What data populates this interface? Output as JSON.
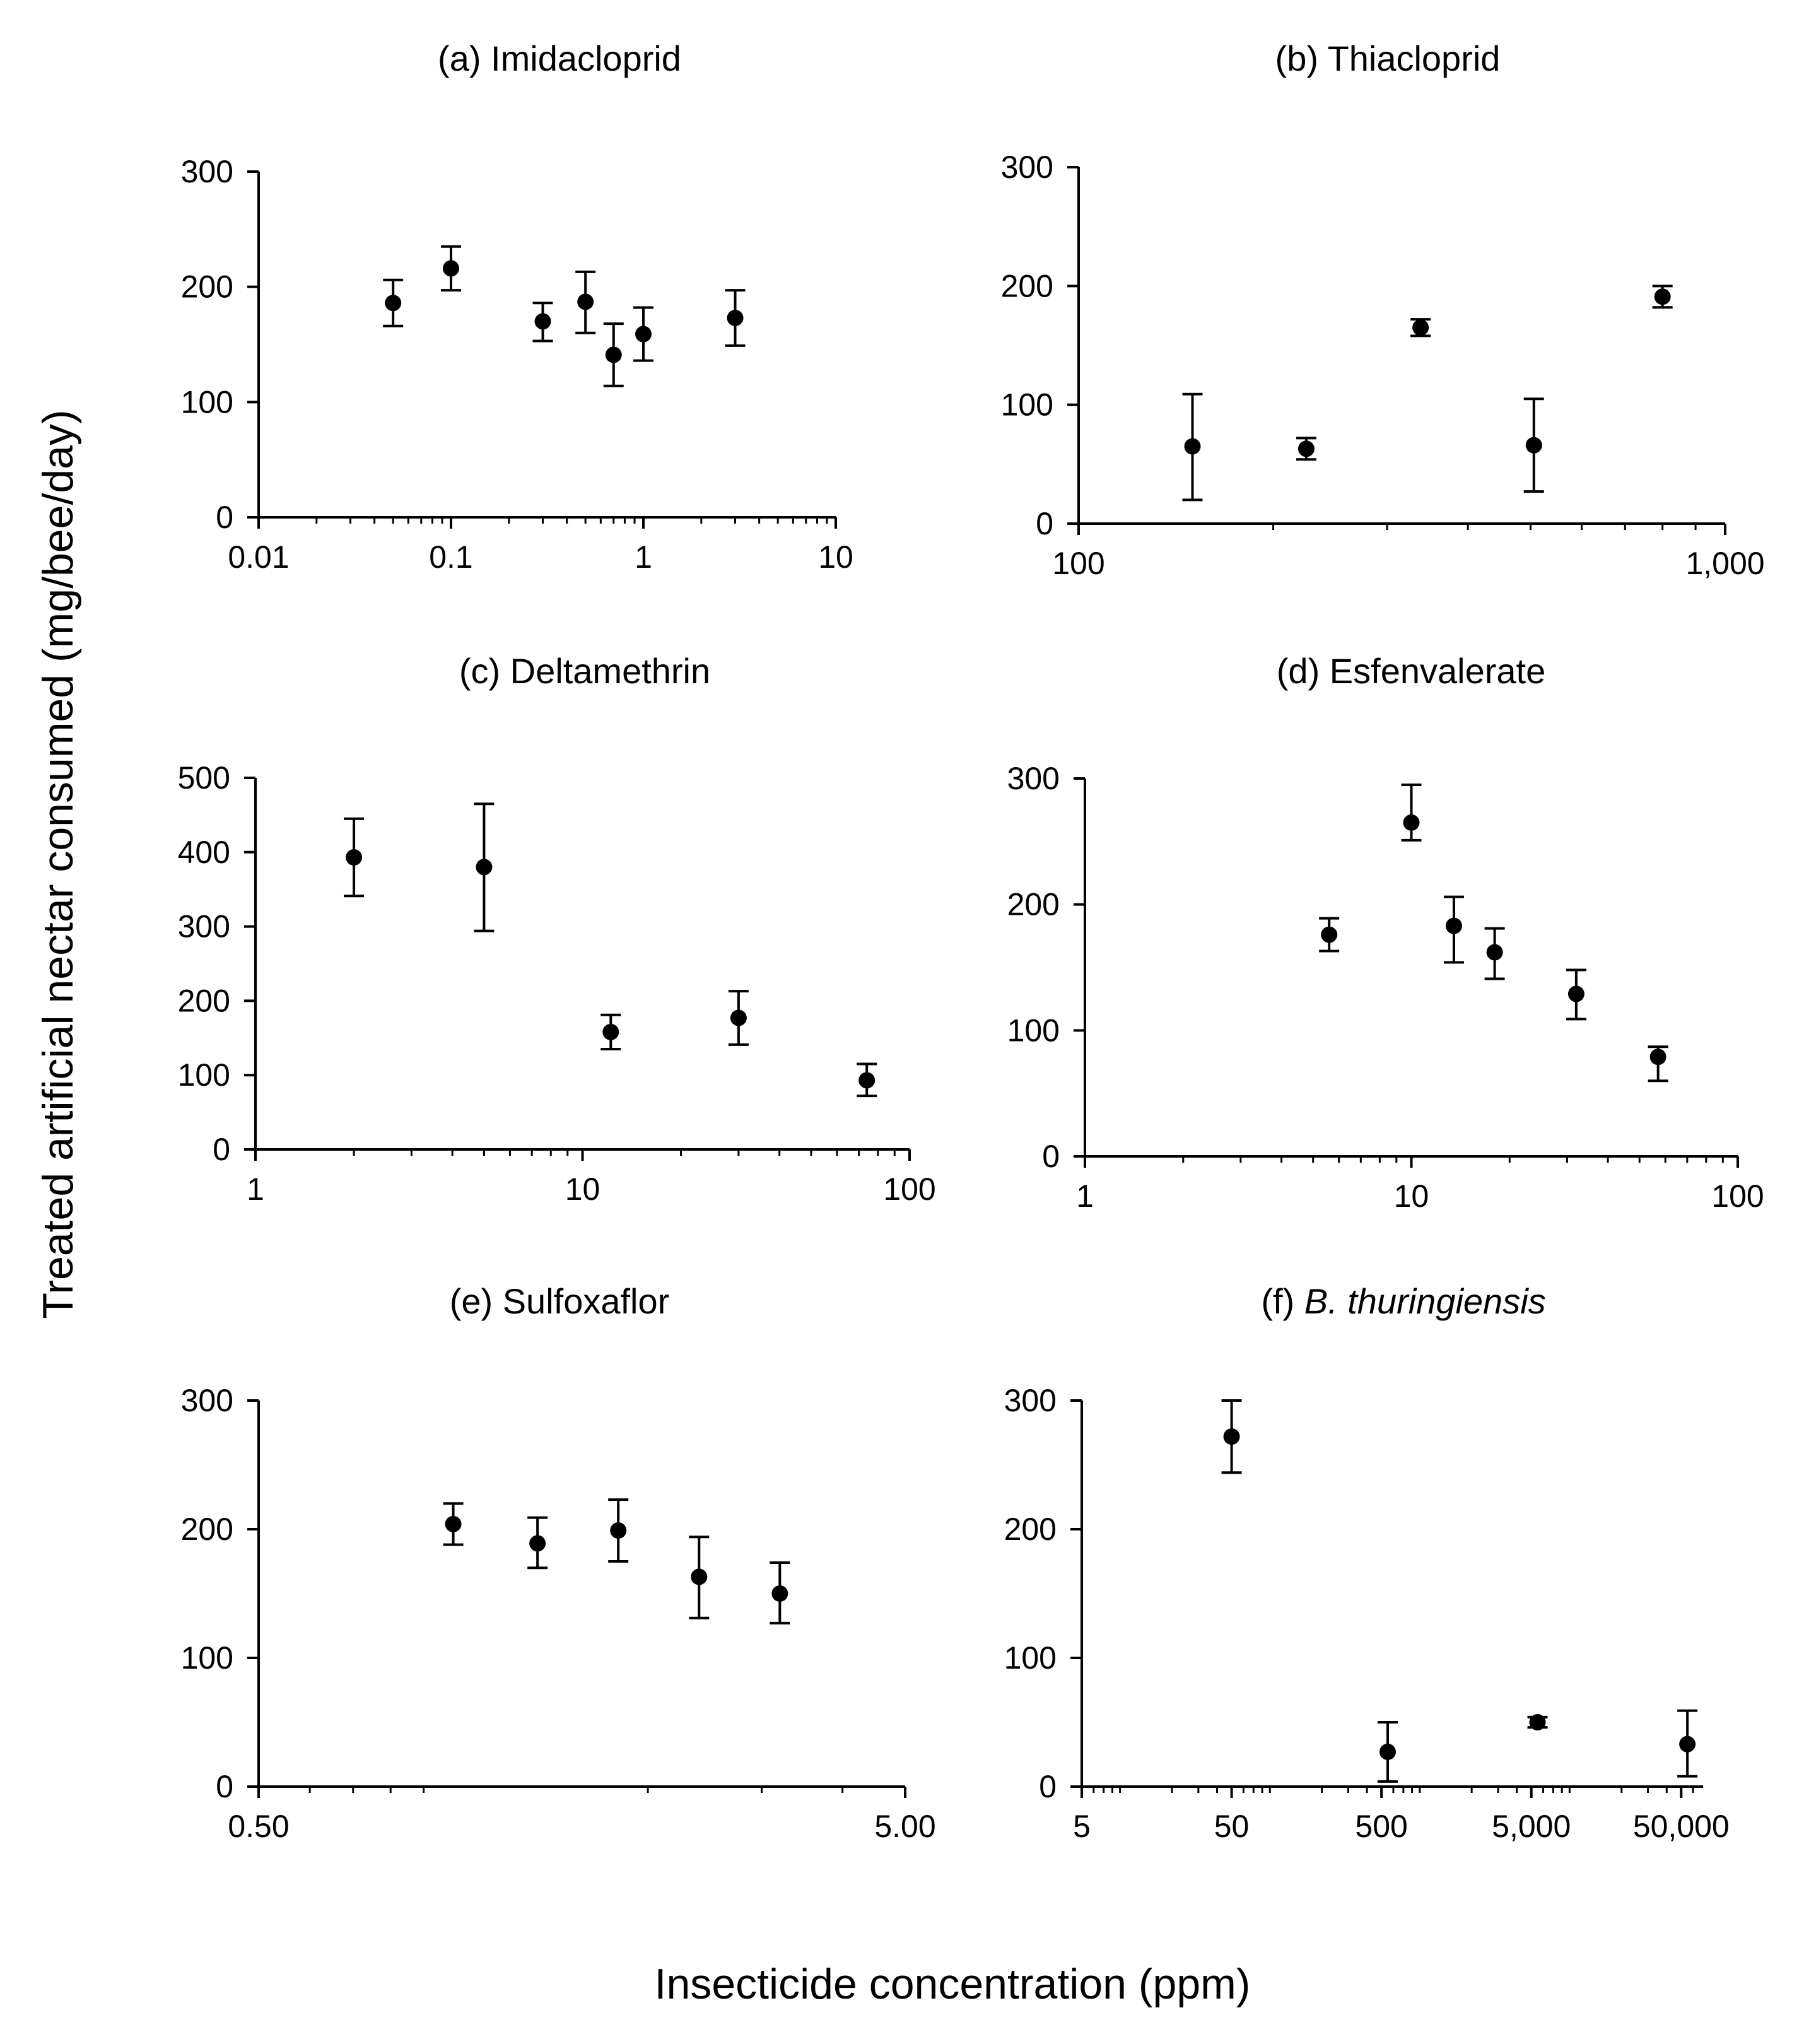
{
  "figure": {
    "xlabel": "Insecticide concentration (ppm)",
    "ylabel": "Treated artificial nectar consumed (mg/bee/day)"
  },
  "chart_data": [
    {
      "type": "scatter",
      "title": "(a) Imidacloprid",
      "x_scale": "log",
      "xlim": [
        0.01,
        10
      ],
      "ylim": [
        0,
        300
      ],
      "x_ticks": [
        0.01,
        0.1,
        1,
        10
      ],
      "x_tick_labels": [
        "0.01",
        "0.1",
        "1",
        "10"
      ],
      "y_ticks": [
        0,
        100,
        200,
        300
      ],
      "y_tick_labels": [
        "0",
        "100",
        "200",
        "300"
      ],
      "points": [
        {
          "x": 0.05,
          "y": 186,
          "lo": 166,
          "hi": 206
        },
        {
          "x": 0.1,
          "y": 216,
          "lo": 197,
          "hi": 235
        },
        {
          "x": 0.3,
          "y": 170,
          "lo": 153,
          "hi": 186
        },
        {
          "x": 0.5,
          "y": 187,
          "lo": 160,
          "hi": 213
        },
        {
          "x": 0.7,
          "y": 141,
          "lo": 114,
          "hi": 168
        },
        {
          "x": 1.0,
          "y": 159,
          "lo": 136,
          "hi": 182
        },
        {
          "x": 3.0,
          "y": 173,
          "lo": 149,
          "hi": 197
        }
      ]
    },
    {
      "type": "scatter",
      "title": "(b) Thiacloprid",
      "x_scale": "log",
      "xlim": [
        100,
        1000
      ],
      "ylim": [
        0,
        300
      ],
      "x_ticks": [
        100,
        1000
      ],
      "x_tick_labels": [
        "100",
        "1,000"
      ],
      "y_ticks": [
        0,
        100,
        200,
        300
      ],
      "y_tick_labels": [
        "0",
        "100",
        "200",
        "300"
      ],
      "points": [
        {
          "x": 150,
          "y": 65,
          "lo": 20,
          "hi": 109
        },
        {
          "x": 225,
          "y": 63,
          "lo": 54,
          "hi": 72
        },
        {
          "x": 338,
          "y": 165,
          "lo": 158,
          "hi": 172
        },
        {
          "x": 506,
          "y": 66,
          "lo": 27,
          "hi": 105
        },
        {
          "x": 800,
          "y": 191,
          "lo": 182,
          "hi": 200
        }
      ]
    },
    {
      "type": "scatter",
      "title": "(c) Deltamethrin",
      "x_scale": "log",
      "xlim": [
        1,
        100
      ],
      "ylim": [
        0,
        500
      ],
      "x_ticks": [
        1,
        10,
        100
      ],
      "x_tick_labels": [
        "1",
        "10",
        "100"
      ],
      "y_ticks": [
        0,
        100,
        200,
        300,
        400,
        500
      ],
      "y_tick_labels": [
        "0",
        "100",
        "200",
        "300",
        "400",
        "500"
      ],
      "points": [
        {
          "x": 2.0,
          "y": 393,
          "lo": 341,
          "hi": 445
        },
        {
          "x": 5.0,
          "y": 380,
          "lo": 294,
          "hi": 465
        },
        {
          "x": 12.2,
          "y": 158,
          "lo": 135,
          "hi": 181
        },
        {
          "x": 30.0,
          "y": 177,
          "lo": 141,
          "hi": 213
        },
        {
          "x": 74.0,
          "y": 93,
          "lo": 72,
          "hi": 115
        }
      ]
    },
    {
      "type": "scatter",
      "title": "(d) Esfenvalerate",
      "x_scale": "log",
      "xlim": [
        1,
        100
      ],
      "ylim": [
        0,
        300
      ],
      "x_ticks": [
        1,
        10,
        100
      ],
      "x_tick_labels": [
        "1",
        "10",
        "100"
      ],
      "y_ticks": [
        0,
        100,
        200,
        300
      ],
      "y_tick_labels": [
        "0",
        "100",
        "200",
        "300"
      ],
      "points": [
        {
          "x": 5.6,
          "y": 176,
          "lo": 163,
          "hi": 189
        },
        {
          "x": 10.0,
          "y": 265,
          "lo": 251,
          "hi": 295
        },
        {
          "x": 13.5,
          "y": 183,
          "lo": 154,
          "hi": 206
        },
        {
          "x": 18.0,
          "y": 162,
          "lo": 141,
          "hi": 181
        },
        {
          "x": 32.0,
          "y": 129,
          "lo": 109,
          "hi": 148
        },
        {
          "x": 57.0,
          "y": 79,
          "lo": 60,
          "hi": 87
        }
      ]
    },
    {
      "type": "scatter",
      "title": "(e) Sulfoxaflor",
      "x_scale": "log",
      "xlim": [
        0.5,
        5.0
      ],
      "ylim": [
        0,
        300
      ],
      "x_ticks": [
        0.5,
        5.0
      ],
      "x_tick_labels": [
        "0.50",
        "5.00"
      ],
      "y_ticks": [
        0,
        100,
        200,
        300
      ],
      "y_tick_labels": [
        "0",
        "100",
        "200",
        "300"
      ],
      "points": [
        {
          "x": 1.0,
          "y": 204,
          "lo": 188,
          "hi": 220
        },
        {
          "x": 1.35,
          "y": 189,
          "lo": 170,
          "hi": 209
        },
        {
          "x": 1.8,
          "y": 199,
          "lo": 175,
          "hi": 223
        },
        {
          "x": 2.4,
          "y": 163,
          "lo": 131,
          "hi": 194
        },
        {
          "x": 3.2,
          "y": 150,
          "lo": 127,
          "hi": 174
        }
      ]
    },
    {
      "type": "scatter",
      "title_prefix": "(f) ",
      "title_italic": "B. thuringiensis",
      "x_scale": "log",
      "xlim": [
        5,
        70000
      ],
      "ylim": [
        0,
        300
      ],
      "x_ticks": [
        5,
        50,
        500,
        5000,
        50000
      ],
      "x_tick_labels": [
        "5",
        "50",
        "500",
        "5,000",
        "50,000"
      ],
      "y_ticks": [
        0,
        100,
        200,
        300
      ],
      "y_tick_labels": [
        "0",
        "100",
        "200",
        "300"
      ],
      "points": [
        {
          "x": 50,
          "y": 272,
          "lo": 244,
          "hi": 300
        },
        {
          "x": 550,
          "y": 27,
          "lo": 4,
          "hi": 50
        },
        {
          "x": 5500,
          "y": 50,
          "lo": 46,
          "hi": 54
        },
        {
          "x": 55000,
          "y": 33,
          "lo": 8,
          "hi": 59
        }
      ]
    }
  ]
}
